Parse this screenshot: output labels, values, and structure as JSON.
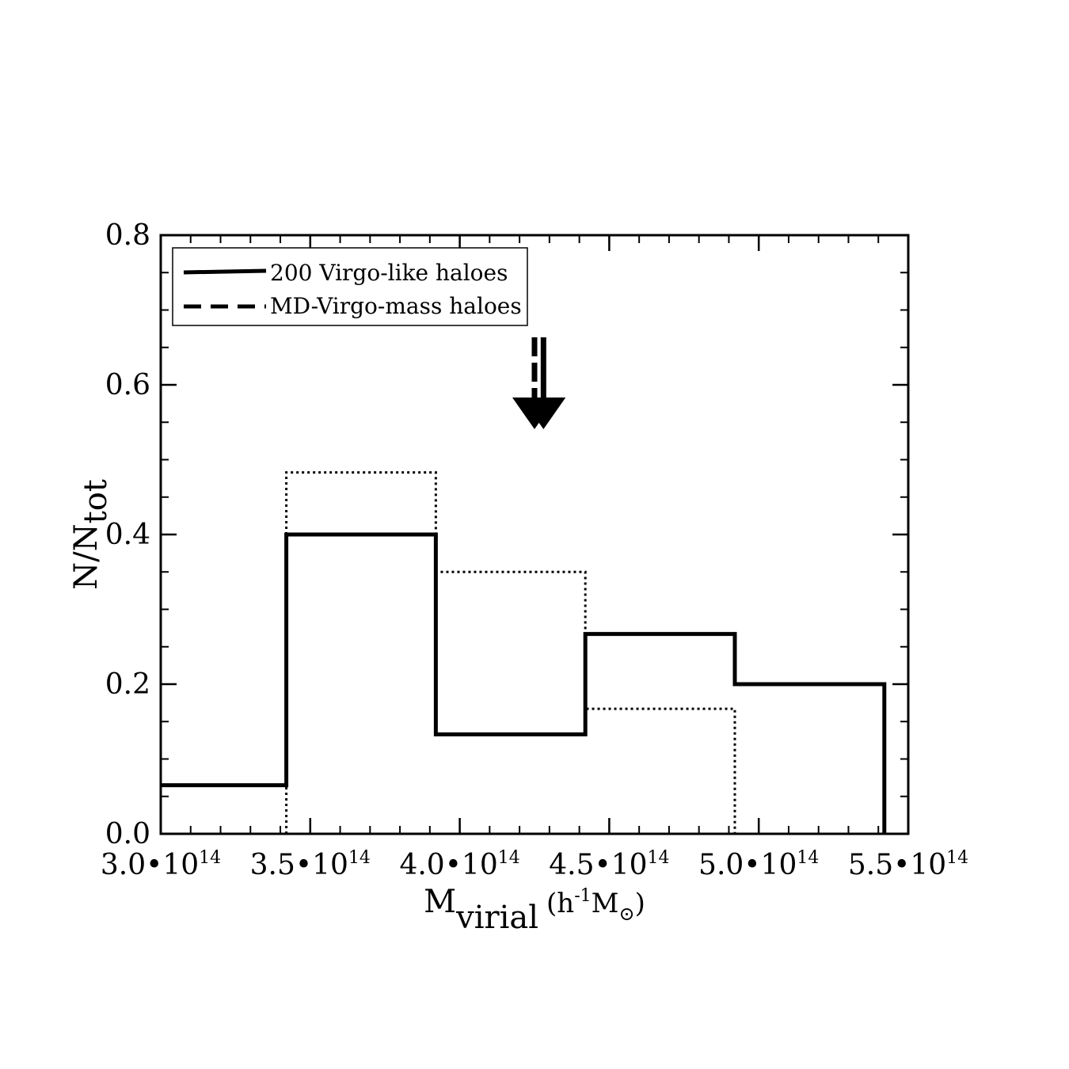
{
  "chart_data": {
    "type": "histogram",
    "title": "",
    "xlabel": {
      "main": "M",
      "sub": "virial",
      "rest": "(h",
      "rest_sup": "-1",
      "rest2": "M",
      "rest2_sub": "⊙",
      "rest_end": ")"
    },
    "ylabel": {
      "main": "N/N",
      "sub": "tot"
    },
    "xlim": [
      300000000000000.0,
      550000000000000.0
    ],
    "ylim": [
      0.0,
      0.8
    ],
    "x_ticks": [
      {
        "value": 300000000000000.0,
        "mantissa": "3.0•10",
        "exp": "14"
      },
      {
        "value": 350000000000000.0,
        "mantissa": "3.5•10",
        "exp": "14"
      },
      {
        "value": 400000000000000.0,
        "mantissa": "4.0•10",
        "exp": "14"
      },
      {
        "value": 450000000000000.0,
        "mantissa": "4.5•10",
        "exp": "14"
      },
      {
        "value": 500000000000000.0,
        "mantissa": "5.0•10",
        "exp": "14"
      },
      {
        "value": 550000000000000.0,
        "mantissa": "5.5•10",
        "exp": "14"
      }
    ],
    "y_ticks": [
      {
        "value": 0.0,
        "label": "0.0"
      },
      {
        "value": 0.2,
        "label": "0.2"
      },
      {
        "value": 0.4,
        "label": "0.4"
      },
      {
        "value": 0.6,
        "label": "0.6"
      },
      {
        "value": 0.8,
        "label": "0.8"
      }
    ],
    "grid": false,
    "legend_position": "top-left",
    "legend": [
      {
        "label": "200 Virgo-like haloes",
        "style": "solid"
      },
      {
        "label": "MD-Virgo-mass haloes",
        "style": "dashed"
      }
    ],
    "series": [
      {
        "name": "200 Virgo-like haloes",
        "style": "solid",
        "bin_edges": [
          300000000000000.0,
          342000000000000.0,
          392000000000000.0,
          442000000000000.0,
          492000000000000.0,
          542000000000000.0
        ],
        "values": [
          0.065,
          0.4,
          0.133,
          0.267,
          0.2
        ]
      },
      {
        "style": "dotted",
        "bin_edges": [
          342000000000000.0,
          392000000000000.0,
          442000000000000.0,
          492000000000000.0
        ],
        "values": [
          0.483,
          0.35,
          0.167
        ]
      }
    ],
    "arrows": [
      {
        "style": "solid",
        "x": 428000000000000.0
      },
      {
        "style": "dashed",
        "x": 425000000000000.0
      }
    ]
  }
}
